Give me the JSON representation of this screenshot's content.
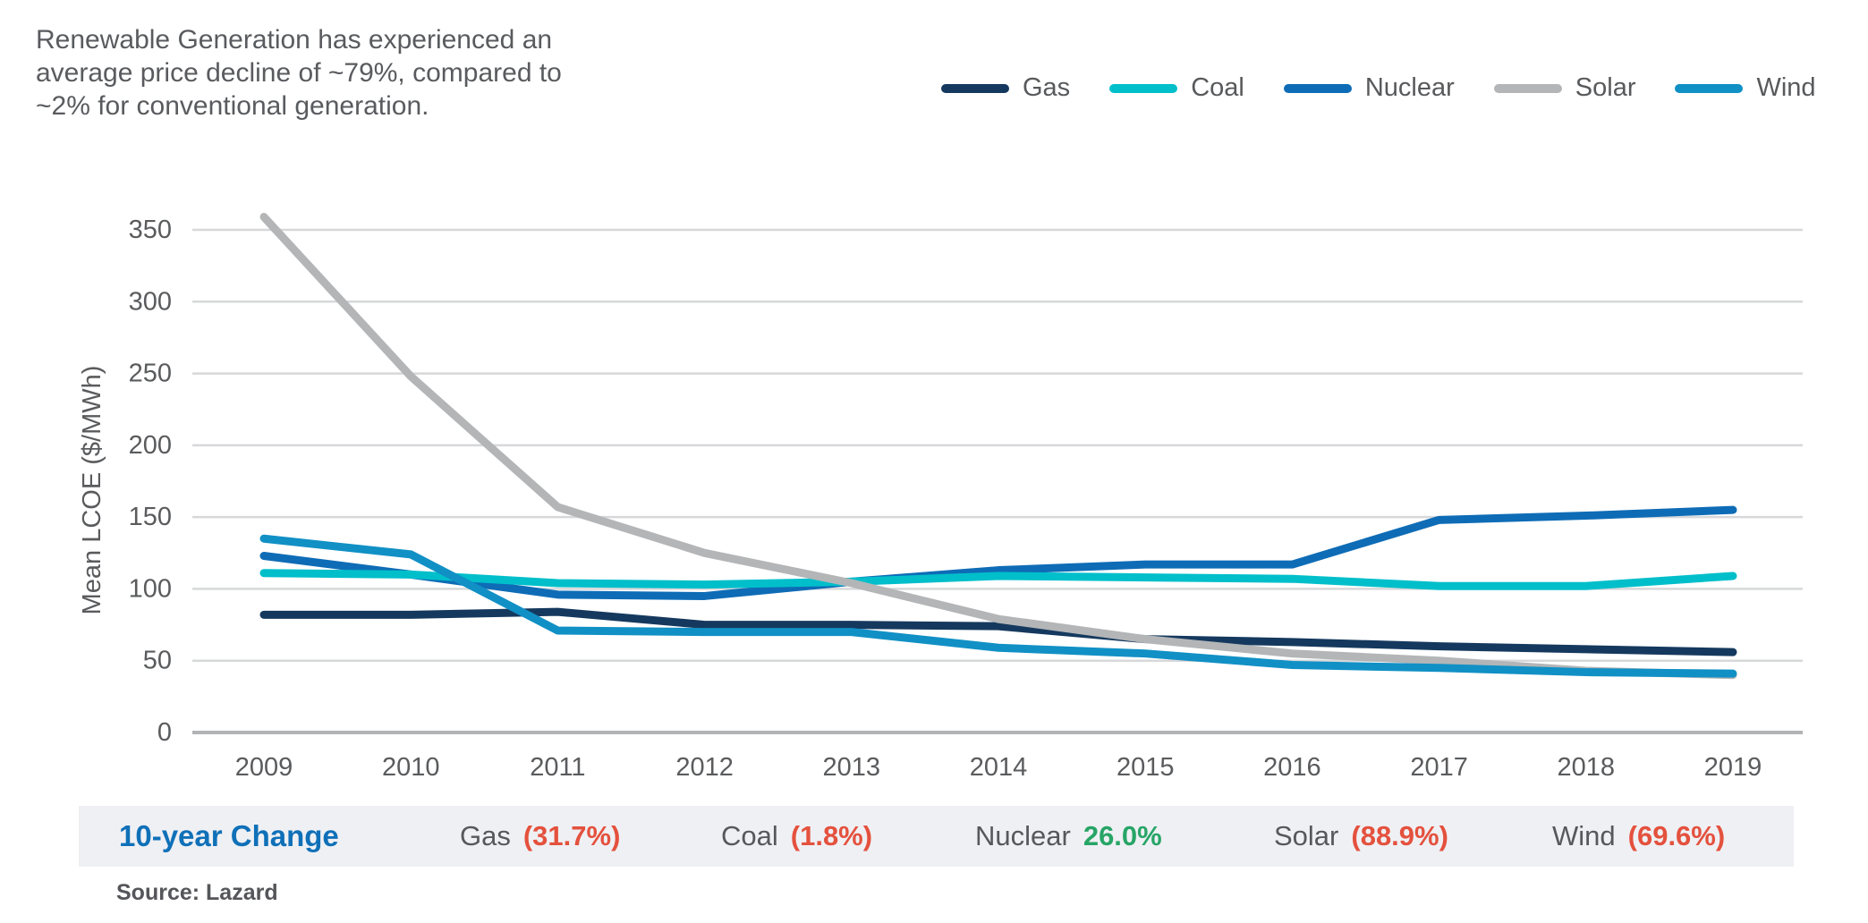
{
  "title": {
    "lines": [
      "Renewable Generation has experienced an",
      "average price decline of ~79%, compared to",
      "~2% for conventional generation."
    ]
  },
  "chart_data": {
    "type": "line",
    "title": "",
    "xlabel": "",
    "ylabel": "Mean LCOE ($/MWh)",
    "x": [
      2009,
      2010,
      2011,
      2012,
      2013,
      2014,
      2015,
      2016,
      2017,
      2018,
      2019
    ],
    "ylim": [
      0,
      375
    ],
    "y_ticks": [
      0,
      50,
      100,
      150,
      200,
      250,
      300,
      350
    ],
    "grid": "horizontal",
    "legend_position": "top-right",
    "series": [
      {
        "name": "Gas",
        "color": "#15395e",
        "values": [
          82,
          82,
          84,
          75,
          75,
          74,
          65,
          63,
          60,
          58,
          56
        ]
      },
      {
        "name": "Coal",
        "color": "#00bfca",
        "values": [
          111,
          110,
          104,
          103,
          105,
          109,
          108,
          107,
          102,
          102,
          109
        ]
      },
      {
        "name": "Nuclear",
        "color": "#0e6cb6",
        "values": [
          123,
          110,
          96,
          95,
          105,
          113,
          117,
          117,
          148,
          151,
          155
        ]
      },
      {
        "name": "Solar",
        "color": "#b3b5b7",
        "values": [
          359,
          248,
          157,
          125,
          104,
          79,
          65,
          55,
          50,
          43,
          40
        ]
      },
      {
        "name": "Wind",
        "color": "#1190c5",
        "values": [
          135,
          124,
          71,
          70,
          70,
          59,
          55,
          47,
          45,
          42,
          41
        ]
      }
    ]
  },
  "summary": {
    "title": "10-year Change",
    "title_color": "#0f70b8",
    "up_color": "#27a566",
    "down_color": "#e4513d",
    "items": [
      {
        "name": "Gas",
        "change": "(31.7%)",
        "direction": "down"
      },
      {
        "name": "Coal",
        "change": "(1.8%)",
        "direction": "down"
      },
      {
        "name": "Nuclear",
        "change": "26.0%",
        "direction": "up"
      },
      {
        "name": "Solar",
        "change": "(88.9%)",
        "direction": "down"
      },
      {
        "name": "Wind",
        "change": "(69.6%)",
        "direction": "down"
      }
    ]
  },
  "source": {
    "text": "Source: Lazard"
  }
}
